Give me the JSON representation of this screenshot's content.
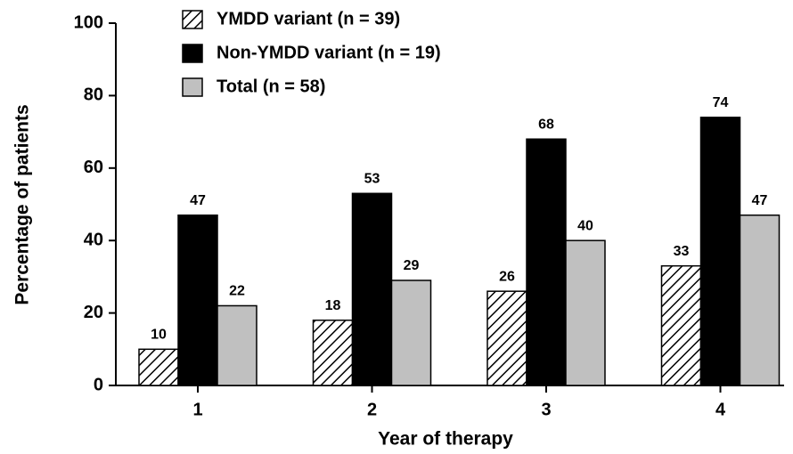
{
  "chart_data": {
    "type": "bar",
    "x_label": "Year of therapy",
    "y_label": "Percentage of patients",
    "categories": [
      "1",
      "2",
      "3",
      "4"
    ],
    "series": [
      {
        "name": "YMDD variant (n = 39)",
        "color": "#000000",
        "pattern": "hatch",
        "values": [
          10,
          18,
          26,
          33
        ]
      },
      {
        "name": "Non-YMDD variant (n = 19)",
        "color": "#000000",
        "values": [
          47,
          53,
          68,
          74
        ]
      },
      {
        "name": "Total (n = 58)",
        "color": "#c0c0c0",
        "values": [
          22,
          29,
          40,
          47
        ]
      }
    ],
    "ylim": [
      0,
      100
    ],
    "yticks": [
      0,
      20,
      40,
      60,
      80,
      100
    ],
    "grid": false,
    "legend": "top-left"
  }
}
